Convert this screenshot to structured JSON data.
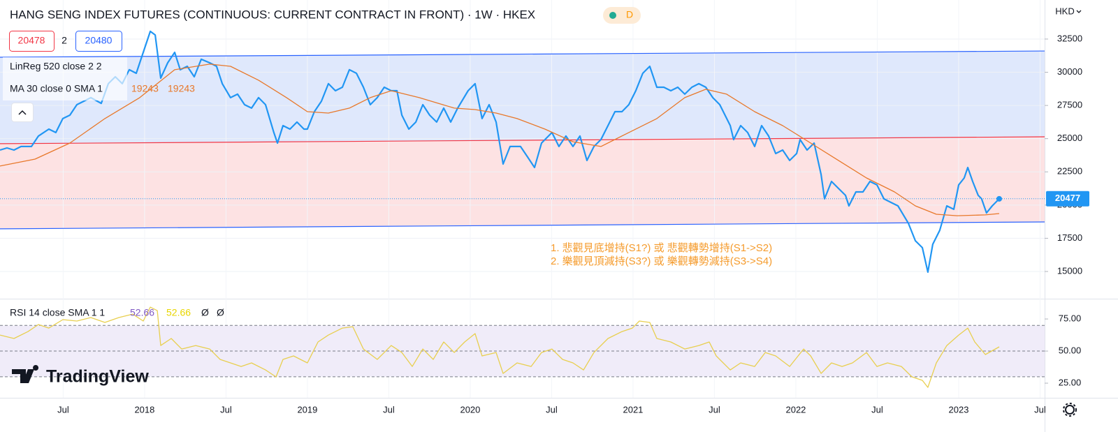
{
  "chart_data": [
    {
      "type": "line",
      "title": "HANG SENG INDEX FUTURES (CONTINUOUS: CURRENT CONTRACT IN FRONT) · 1W · HKEX",
      "badge": "D",
      "currency": "HKD",
      "sell": 20478,
      "spread": 2,
      "buy": 20480,
      "indicators": [
        {
          "name": "LinReg 520 close 2 2"
        },
        {
          "name": "MA 30 close 0 SMA 1",
          "values": [
            19243,
            19243
          ]
        }
      ],
      "annotations": [
        "1. 悲觀見底增持(S1?) 或 悲觀轉勢增持(S1->S2)",
        "2. 樂觀見頂減持(S3?) 或 樂觀轉勢減持(S3->S4)"
      ],
      "xlim": [
        2017.112,
        2023.528
      ],
      "xticks": [
        {
          "value": 2017.5,
          "label": "Jul"
        },
        {
          "value": 2018,
          "label": "2018"
        },
        {
          "value": 2018.5,
          "label": "Jul"
        },
        {
          "value": 2019,
          "label": "2019"
        },
        {
          "value": 2019.5,
          "label": "Jul"
        },
        {
          "value": 2020,
          "label": "2020"
        },
        {
          "value": 2020.5,
          "label": "Jul"
        },
        {
          "value": 2021,
          "label": "2021"
        },
        {
          "value": 2021.5,
          "label": "Jul"
        },
        {
          "value": 2022,
          "label": "2022"
        },
        {
          "value": 2022.5,
          "label": "Jul"
        },
        {
          "value": 2023,
          "label": "2023"
        },
        {
          "value": 2023.5,
          "label": "Jul"
        }
      ],
      "ylim": [
        12950,
        35440
      ],
      "yticks": [
        15000,
        17500,
        20000,
        22500,
        25000,
        27500,
        30000,
        32500
      ],
      "grid": true,
      "last_value": 20477,
      "channel": {
        "upper": [
          31130,
          31600
        ],
        "middle": [
          24620,
          25140
        ],
        "lower": [
          18210,
          18730
        ]
      },
      "series": [
        {
          "name": "Price",
          "color": "#2196f3",
          "x": [
            2017.112,
            2017.155,
            2017.198,
            2017.241,
            2017.305,
            2017.348,
            2017.412,
            2017.455,
            2017.498,
            2017.541,
            2017.584,
            2017.627,
            2017.67,
            2017.734,
            2017.777,
            2017.82,
            2017.863,
            2017.906,
            2017.949,
            2017.992,
            2018.035,
            2018.065,
            2018.099,
            2018.142,
            2018.185,
            2018.219,
            2018.262,
            2018.305,
            2018.348,
            2018.4,
            2018.442,
            2018.477,
            2018.528,
            2018.571,
            2018.614,
            2018.657,
            2018.7,
            2018.743,
            2018.794,
            2018.816,
            2018.85,
            2018.893,
            2018.936,
            2018.979,
            2019.0,
            2019.043,
            2019.086,
            2019.129,
            2019.172,
            2019.215,
            2019.258,
            2019.301,
            2019.344,
            2019.386,
            2019.429,
            2019.472,
            2019.515,
            2019.55,
            2019.58,
            2019.623,
            2019.666,
            2019.709,
            2019.751,
            2019.794,
            2019.837,
            2019.88,
            2019.923,
            2019.987,
            2020.03,
            2020.073,
            2020.116,
            2020.159,
            2020.202,
            2020.245,
            2020.309,
            2020.352,
            2020.395,
            2020.438,
            2020.502,
            2020.545,
            2020.588,
            2020.631,
            2020.674,
            2020.717,
            2020.76,
            2020.803,
            2020.846,
            2020.889,
            2020.932,
            2020.974,
            2021.017,
            2021.06,
            2021.103,
            2021.146,
            2021.189,
            2021.232,
            2021.275,
            2021.318,
            2021.361,
            2021.404,
            2021.447,
            2021.49,
            2021.533,
            2021.597,
            2021.618,
            2021.661,
            2021.704,
            2021.747,
            2021.79,
            2021.833,
            2021.876,
            2021.919,
            2021.962,
            2022.005,
            2022.026,
            2022.069,
            2022.112,
            2022.155,
            2022.176,
            2022.219,
            2022.262,
            2022.305,
            2022.326,
            2022.369,
            2022.412,
            2022.455,
            2022.498,
            2022.541,
            2022.584,
            2022.627,
            2022.691,
            2022.734,
            2022.777,
            2022.811,
            2022.841,
            2022.884,
            2022.927,
            2022.97,
            2023.0,
            2023.034,
            2023.056,
            2023.086,
            2023.12,
            2023.141,
            2023.171,
            2023.206,
            2023.249
          ],
          "values": [
            24140,
            24300,
            24140,
            24410,
            24410,
            25200,
            25720,
            25460,
            26510,
            26770,
            27560,
            27820,
            28090,
            27660,
            29140,
            29660,
            29140,
            30190,
            29920,
            31500,
            33080,
            32810,
            29560,
            30710,
            31500,
            30190,
            30450,
            29660,
            30980,
            30710,
            30450,
            29140,
            28090,
            28350,
            27560,
            27300,
            28090,
            27560,
            25460,
            24670,
            25980,
            25720,
            26250,
            25720,
            25720,
            27030,
            27820,
            29140,
            28610,
            28870,
            30190,
            29920,
            28870,
            27560,
            28090,
            28870,
            28610,
            28610,
            26770,
            25720,
            26250,
            27560,
            26770,
            26250,
            27300,
            26250,
            27300,
            28610,
            29140,
            26510,
            27560,
            26250,
            23090,
            24410,
            24410,
            23620,
            22830,
            24670,
            25460,
            24410,
            25200,
            24410,
            25200,
            23360,
            24410,
            24930,
            25980,
            27030,
            27030,
            27560,
            28610,
            29920,
            30450,
            28870,
            28870,
            28610,
            28870,
            28350,
            28870,
            29140,
            28870,
            28090,
            27560,
            25980,
            24930,
            25980,
            25460,
            24410,
            25980,
            25200,
            23880,
            24140,
            23360,
            23880,
            24930,
            24140,
            24670,
            22300,
            20470,
            21780,
            21250,
            20730,
            19940,
            20990,
            20990,
            21780,
            21520,
            20470,
            20200,
            19940,
            18630,
            17310,
            16790,
            14950,
            17050,
            18100,
            19940,
            19680,
            21520,
            22040,
            22830,
            21780,
            20730,
            20470,
            19410,
            19940,
            20470
          ]
        },
        {
          "name": "MA 30",
          "color": "#e8782a",
          "x": [
            2017.112,
            2017.327,
            2017.541,
            2017.756,
            2017.97,
            2018.185,
            2018.4,
            2018.528,
            2018.7,
            2018.872,
            2019.0,
            2019.129,
            2019.258,
            2019.386,
            2019.515,
            2019.687,
            2019.902,
            2020.03,
            2020.159,
            2020.288,
            2020.459,
            2020.631,
            2020.803,
            2020.974,
            2021.146,
            2021.318,
            2021.447,
            2021.575,
            2021.747,
            2021.919,
            2022.091,
            2022.262,
            2022.434,
            2022.606,
            2022.734,
            2022.863,
            2022.991,
            2023.163,
            2023.249
          ],
          "values": [
            22940,
            23460,
            24670,
            26510,
            28090,
            30190,
            30610,
            30450,
            29400,
            28090,
            27030,
            26930,
            27300,
            28090,
            28610,
            28090,
            27300,
            27190,
            26930,
            26510,
            25720,
            24770,
            24410,
            25460,
            26510,
            28090,
            28720,
            28350,
            27030,
            25980,
            24670,
            23360,
            22040,
            20990,
            19940,
            19310,
            19200,
            19260,
            19360
          ]
        }
      ]
    },
    {
      "type": "line",
      "title": "RSI 14 close SMA 1 1",
      "legend_values": [
        52.66,
        52.66
      ],
      "flags": [
        "Ø",
        "Ø"
      ],
      "brand": "TradingView",
      "xlim": [
        2017.112,
        2023.528
      ],
      "ylim": [
        13.6,
        90.8
      ],
      "yticks": [
        {
          "value": 25,
          "label": "25.00"
        },
        {
          "value": 50,
          "label": "50.00"
        },
        {
          "value": 75,
          "label": "75.00"
        }
      ],
      "bands": [
        30,
        50,
        70
      ],
      "series": [
        {
          "name": "RSI",
          "color": "#e8cf4f",
          "x": [
            2017.112,
            2017.198,
            2017.284,
            2017.348,
            2017.412,
            2017.498,
            2017.584,
            2017.67,
            2017.756,
            2017.842,
            2017.927,
            2017.992,
            2018.035,
            2018.078,
            2018.099,
            2018.164,
            2018.228,
            2018.314,
            2018.4,
            2018.464,
            2018.528,
            2018.593,
            2018.657,
            2018.743,
            2018.807,
            2018.85,
            2018.915,
            2019.0,
            2019.065,
            2019.129,
            2019.215,
            2019.279,
            2019.344,
            2019.429,
            2019.515,
            2019.58,
            2019.644,
            2019.709,
            2019.773,
            2019.837,
            2019.902,
            2019.966,
            2020.03,
            2020.073,
            2020.159,
            2020.202,
            2020.288,
            2020.374,
            2020.438,
            2020.502,
            2020.567,
            2020.631,
            2020.696,
            2020.76,
            2020.846,
            2020.932,
            2020.996,
            2021.039,
            2021.103,
            2021.146,
            2021.232,
            2021.318,
            2021.404,
            2021.468,
            2021.511,
            2021.597,
            2021.661,
            2021.747,
            2021.812,
            2021.876,
            2021.962,
            2022.048,
            2022.091,
            2022.155,
            2022.219,
            2022.284,
            2022.348,
            2022.434,
            2022.498,
            2022.563,
            2022.648,
            2022.713,
            2022.777,
            2022.811,
            2022.863,
            2022.927,
            2023.0,
            2023.056,
            2023.099,
            2023.164,
            2023.249
          ],
          "values": [
            62.5,
            59.8,
            65.2,
            70.7,
            67.9,
            74.5,
            73.4,
            76.1,
            72.3,
            76.1,
            78.8,
            73.4,
            84.2,
            81.5,
            54.3,
            59.8,
            51.6,
            54.3,
            51.6,
            43.5,
            40.8,
            38.0,
            40.8,
            35.3,
            29.9,
            43.5,
            46.2,
            40.8,
            57.1,
            62.5,
            67.9,
            69.0,
            51.6,
            43.5,
            54.3,
            48.9,
            38.0,
            51.6,
            43.5,
            57.1,
            48.9,
            57.1,
            63.6,
            46.2,
            48.9,
            32.6,
            40.8,
            38.0,
            48.9,
            51.6,
            43.5,
            40.8,
            35.3,
            48.9,
            59.8,
            65.2,
            67.9,
            73.4,
            72.3,
            59.8,
            57.1,
            51.6,
            54.3,
            57.1,
            46.2,
            35.3,
            40.8,
            38.0,
            48.9,
            46.2,
            38.0,
            51.6,
            46.2,
            32.6,
            40.8,
            38.0,
            40.8,
            48.9,
            38.0,
            40.8,
            38.0,
            29.9,
            27.2,
            21.7,
            40.8,
            54.3,
            62.5,
            67.9,
            57.1,
            47.3,
            53.3
          ]
        }
      ]
    }
  ]
}
